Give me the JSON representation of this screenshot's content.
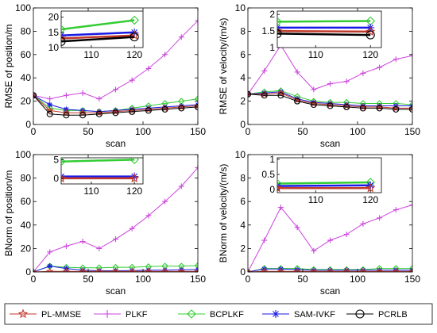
{
  "legend": {
    "entries": [
      {
        "label": "PL-MMSE",
        "color": "#c0392b",
        "marker": "star"
      },
      {
        "label": "PLKF",
        "color": "#cc44dd",
        "marker": "plus"
      },
      {
        "label": "BCPLKF",
        "color": "#33cc33",
        "marker": "diamond"
      },
      {
        "label": "SAM-IVKF",
        "color": "#1a1ae6",
        "marker": "asterisk"
      },
      {
        "label": "PCRLB",
        "color": "#000000",
        "marker": "circle"
      }
    ]
  },
  "chart_data": [
    {
      "type": "line",
      "ylabel": "RMSE of position/m",
      "xlabel": "scan",
      "xlim": [
        0,
        150
      ],
      "ylim": [
        0,
        100
      ],
      "xticks": [
        0,
        50,
        100,
        150
      ],
      "yticks": [
        0,
        20,
        40,
        60,
        80,
        100
      ],
      "x": [
        0,
        15,
        30,
        45,
        60,
        75,
        90,
        105,
        120,
        135,
        150
      ],
      "series": [
        {
          "name": "PLKF",
          "values": [
            25,
            22,
            25,
            27,
            22,
            30,
            38,
            48,
            60,
            75,
            89
          ]
        },
        {
          "name": "BCPLKF",
          "values": [
            25,
            14,
            12,
            12,
            11,
            12,
            14,
            16,
            18,
            20,
            22
          ]
        },
        {
          "name": "SAM-IVKF",
          "values": [
            25,
            17,
            13,
            12,
            11,
            12,
            13,
            14,
            15,
            16,
            17
          ]
        },
        {
          "name": "PL-MMSE",
          "values": [
            25,
            12,
            10,
            10,
            10,
            11,
            12,
            13,
            14,
            15,
            16
          ]
        },
        {
          "name": "PCRLB",
          "values": [
            25,
            9,
            8,
            8,
            9,
            10,
            11,
            12,
            13,
            14,
            15
          ]
        }
      ],
      "inset": {
        "xlim": [
          103,
          122
        ],
        "ylim": [
          10,
          22
        ],
        "xticks": [
          110,
          120
        ],
        "yticks": [
          10,
          15,
          20
        ],
        "x": [
          103,
          120
        ],
        "series": [
          {
            "name": "BCPLKF",
            "values": [
              16,
              19
            ]
          },
          {
            "name": "SAM-IVKF",
            "values": [
              14,
              15
            ]
          },
          {
            "name": "PL-MMSE",
            "values": [
              13,
              14
            ]
          },
          {
            "name": "PCRLB",
            "values": [
              12,
              13.5
            ]
          }
        ]
      }
    },
    {
      "type": "line",
      "ylabel": "RMSE of velocity/(m/s)",
      "xlabel": "scan",
      "xlim": [
        0,
        150
      ],
      "ylim": [
        0,
        10
      ],
      "xticks": [
        0,
        50,
        100,
        150
      ],
      "yticks": [
        0,
        2,
        4,
        6,
        8,
        10
      ],
      "x": [
        0,
        15,
        30,
        45,
        60,
        75,
        90,
        105,
        120,
        135,
        150
      ],
      "series": [
        {
          "name": "PLKF",
          "values": [
            2.6,
            4.6,
            6.8,
            4.5,
            3.0,
            3.5,
            3.7,
            4.4,
            4.9,
            5.6,
            5.9
          ]
        },
        {
          "name": "BCPLKF",
          "values": [
            2.6,
            2.8,
            2.9,
            2.4,
            2.0,
            1.9,
            1.9,
            1.8,
            1.8,
            1.8,
            1.7
          ]
        },
        {
          "name": "SAM-IVKF",
          "values": [
            2.6,
            2.7,
            2.8,
            2.2,
            1.9,
            1.8,
            1.7,
            1.6,
            1.6,
            1.6,
            1.6
          ]
        },
        {
          "name": "PL-MMSE",
          "values": [
            2.6,
            2.6,
            2.7,
            2.1,
            1.8,
            1.7,
            1.6,
            1.5,
            1.5,
            1.4,
            1.4
          ]
        },
        {
          "name": "PCRLB",
          "values": [
            2.6,
            2.5,
            2.5,
            2.0,
            1.7,
            1.6,
            1.5,
            1.4,
            1.4,
            1.3,
            1.3
          ]
        }
      ],
      "inset": {
        "xlim": [
          103,
          122
        ],
        "ylim": [
          1,
          2.1
        ],
        "xticks": [
          110,
          120
        ],
        "yticks": [
          1,
          1.5,
          2
        ],
        "x": [
          103,
          120
        ],
        "series": [
          {
            "name": "BCPLKF",
            "values": [
              1.78,
              1.8
            ]
          },
          {
            "name": "SAM-IVKF",
            "values": [
              1.6,
              1.6
            ]
          },
          {
            "name": "PL-MMSE",
            "values": [
              1.5,
              1.48
            ]
          },
          {
            "name": "PCRLB",
            "values": [
              1.42,
              1.38
            ]
          }
        ]
      }
    },
    {
      "type": "line",
      "ylabel": "BNorm of position/m",
      "xlabel": "scan",
      "xlim": [
        0,
        150
      ],
      "ylim": [
        0,
        100
      ],
      "xticks": [
        0,
        50,
        100,
        150
      ],
      "yticks": [
        0,
        20,
        40,
        60,
        80,
        100
      ],
      "x": [
        0,
        15,
        30,
        45,
        60,
        75,
        90,
        105,
        120,
        135,
        150
      ],
      "series": [
        {
          "name": "PLKF",
          "values": [
            0,
            17,
            22,
            26,
            20,
            28,
            37,
            48,
            60,
            73,
            89
          ]
        },
        {
          "name": "BCPLKF",
          "values": [
            0,
            5,
            4,
            3.5,
            3.5,
            4,
            4,
            4.5,
            5,
            5,
            5.5
          ]
        },
        {
          "name": "SAM-IVKF",
          "values": [
            0,
            5,
            3,
            1.5,
            1,
            1,
            1.2,
            1.5,
            1.5,
            1.8,
            2
          ]
        },
        {
          "name": "PL-MMSE",
          "values": [
            0,
            0.5,
            0.5,
            0.5,
            0.5,
            0.5,
            0.5,
            0.5,
            0.5,
            0.5,
            0.5
          ]
        }
      ],
      "inset": {
        "xlim": [
          103,
          122
        ],
        "ylim": [
          -1.5,
          5.5
        ],
        "xticks": [
          110,
          120
        ],
        "yticks": [
          0,
          5
        ],
        "x": [
          103,
          120
        ],
        "series": [
          {
            "name": "BCPLKF",
            "values": [
              4.5,
              5
            ]
          },
          {
            "name": "SAM-IVKF",
            "values": [
              0.5,
              0.5
            ]
          },
          {
            "name": "PL-MMSE",
            "values": [
              0,
              0
            ]
          }
        ]
      }
    },
    {
      "type": "line",
      "ylabel": "BNorm of velocity/(m/s)",
      "xlabel": "scan",
      "xlim": [
        0,
        150
      ],
      "ylim": [
        0,
        10
      ],
      "xticks": [
        0,
        50,
        100,
        150
      ],
      "yticks": [
        0,
        2,
        4,
        6,
        8,
        10
      ],
      "x": [
        0,
        15,
        30,
        45,
        60,
        75,
        90,
        105,
        120,
        135,
        150
      ],
      "series": [
        {
          "name": "PLKF",
          "values": [
            0,
            2.7,
            5.5,
            3.8,
            1.8,
            2.7,
            3.2,
            4.1,
            4.6,
            5.3,
            5.7
          ]
        },
        {
          "name": "BCPLKF",
          "values": [
            0,
            0.3,
            0.3,
            0.3,
            0.2,
            0.2,
            0.2,
            0.2,
            0.3,
            0.3,
            0.3
          ]
        },
        {
          "name": "SAM-IVKF",
          "values": [
            0,
            0.25,
            0.25,
            0.2,
            0.15,
            0.15,
            0.15,
            0.15,
            0.15,
            0.15,
            0.15
          ]
        },
        {
          "name": "PL-MMSE",
          "values": [
            0,
            0.05,
            0.05,
            0.05,
            0.05,
            0.05,
            0.05,
            0.05,
            0.05,
            0.05,
            0.05
          ]
        }
      ],
      "inset": {
        "xlim": [
          103,
          122
        ],
        "ylim": [
          -0.1,
          1.05
        ],
        "xticks": [
          110,
          120
        ],
        "yticks": [
          0,
          0.5,
          1
        ],
        "x": [
          103,
          120
        ],
        "series": [
          {
            "name": "BCPLKF",
            "values": [
              0.2,
              0.24
            ]
          },
          {
            "name": "SAM-IVKF",
            "values": [
              0.12,
              0.14
            ]
          },
          {
            "name": "PL-MMSE",
            "values": [
              0.05,
              0.05
            ]
          }
        ]
      }
    }
  ]
}
